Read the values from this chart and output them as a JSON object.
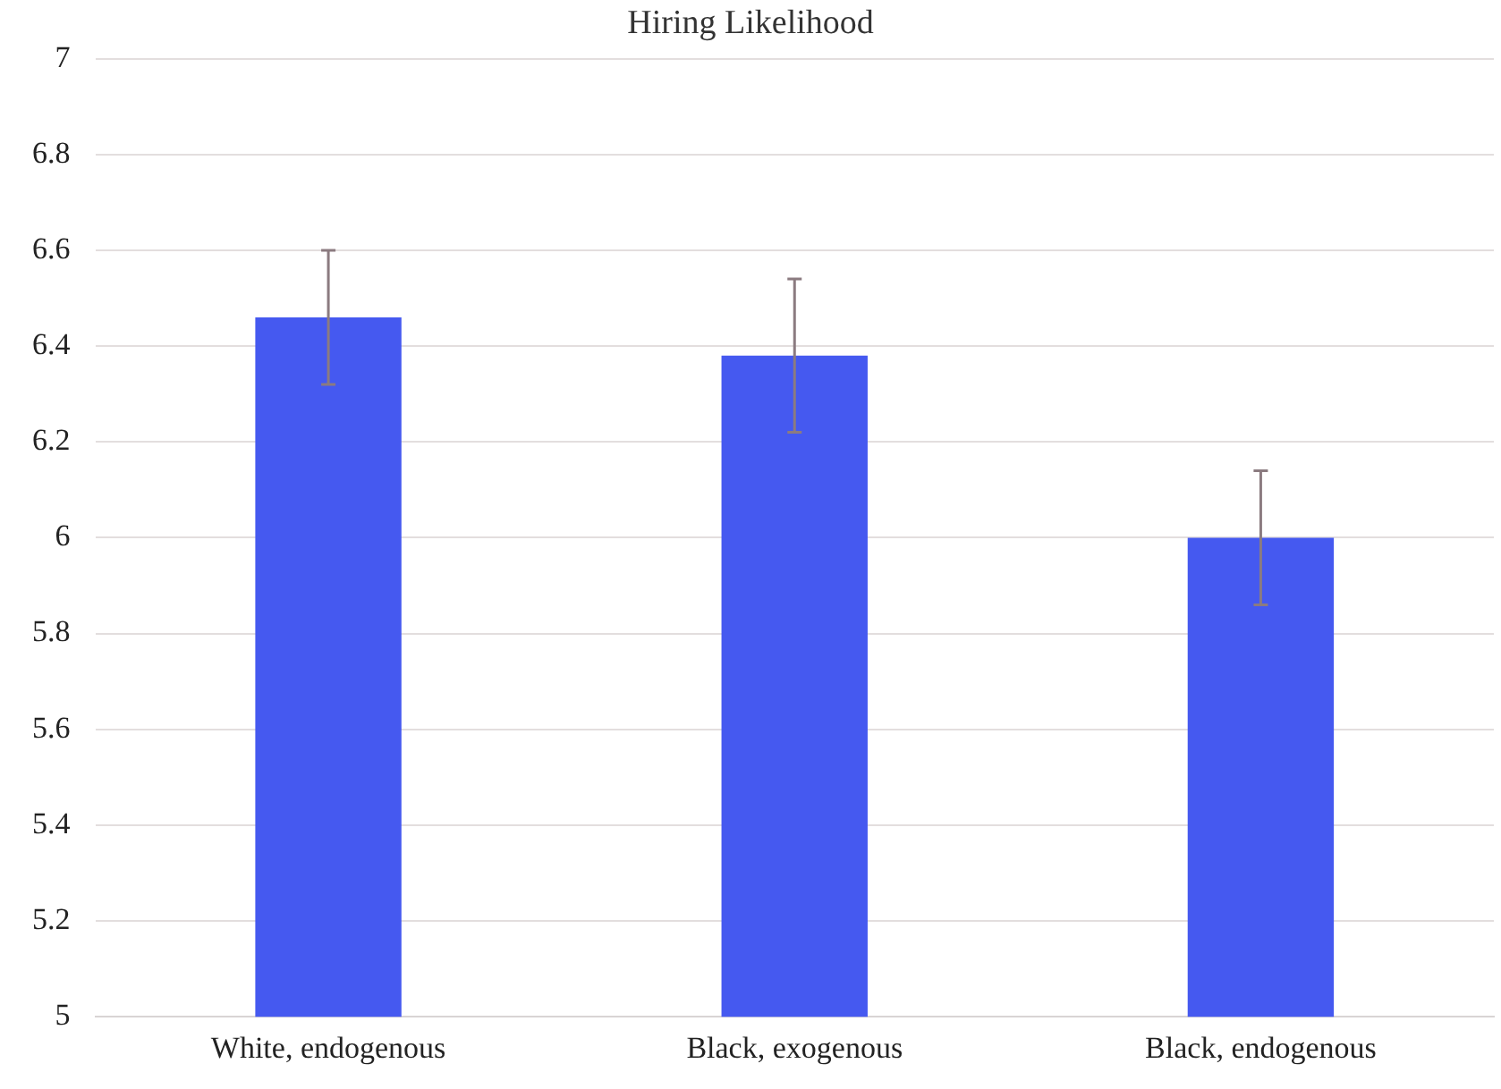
{
  "chart_data": {
    "type": "bar",
    "title": "Hiring Likelihood",
    "categories": [
      "White, endogenous",
      "Black, exogenous",
      "Black, endogenous"
    ],
    "values": [
      6.46,
      6.38,
      6.0
    ],
    "errors": [
      0.14,
      0.16,
      0.14
    ],
    "color": "#4559f0",
    "ylim": [
      5,
      7
    ],
    "yticks": [
      5,
      5.2,
      5.4,
      5.6,
      5.8,
      6,
      6.2,
      6.4,
      6.6,
      6.8,
      7
    ],
    "grid": "y",
    "legend": false
  }
}
